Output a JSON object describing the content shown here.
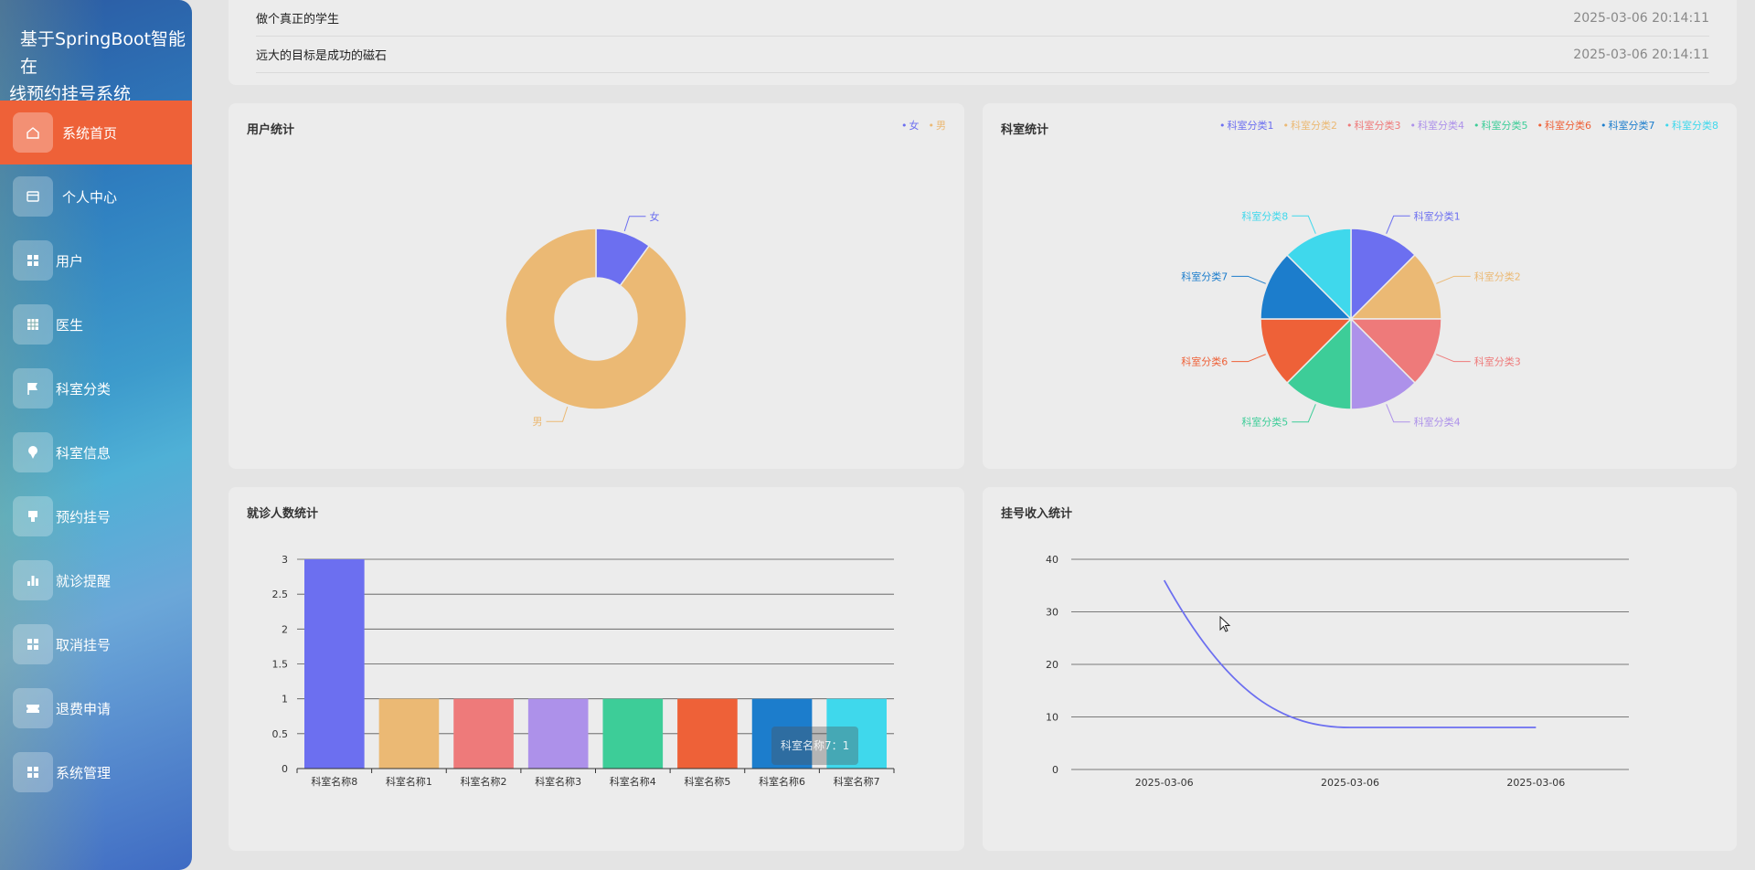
{
  "sidebar": {
    "brand_line1": "基于SpringBoot智能在",
    "brand_line2": "线预约挂号系统",
    "items": [
      {
        "label": "系统首页",
        "icon": "home-icon",
        "active": true
      },
      {
        "label": "个人中心",
        "icon": "card-icon",
        "active": false
      },
      {
        "label": "用户",
        "icon": "grid-icon",
        "active": false
      },
      {
        "label": "医生",
        "icon": "table-icon",
        "active": false
      },
      {
        "label": "科室分类",
        "icon": "flag-icon",
        "active": false
      },
      {
        "label": "科室信息",
        "icon": "pin-icon",
        "active": false
      },
      {
        "label": "预约挂号",
        "icon": "stamp-icon",
        "active": false
      },
      {
        "label": "就诊提醒",
        "icon": "bar-chart-icon",
        "active": false
      },
      {
        "label": "取消挂号",
        "icon": "grid-icon",
        "active": false
      },
      {
        "label": "退费申请",
        "icon": "ticket-icon",
        "active": false
      },
      {
        "label": "系统管理",
        "icon": "grid-icon",
        "active": false
      }
    ]
  },
  "news": [
    {
      "title": "做个真正的学生",
      "date": "2025-03-06 20:14:11"
    },
    {
      "title": "远大的目标是成功的磁石",
      "date": "2025-03-06 20:14:11"
    }
  ],
  "colors": {
    "c1": "#6c6ff0",
    "c2": "#ebb974",
    "c3": "#ee7a7a",
    "c4": "#ad91ea",
    "c5": "#3dcd98",
    "c6": "#ee6138",
    "c7": "#1c7dcc",
    "c8": "#3fd8ec",
    "active_menu": "#ee6138"
  },
  "tooltip": "科室名称7：1",
  "chart_data": [
    {
      "type": "pie",
      "title": "用户统计",
      "donut": true,
      "categories": [
        "女",
        "男"
      ],
      "values": [
        1,
        9
      ],
      "legend": "top-right"
    },
    {
      "type": "pie",
      "title": "科室统计",
      "categories": [
        "科室分类1",
        "科室分类2",
        "科室分类3",
        "科室分类4",
        "科室分类5",
        "科室分类6",
        "科室分类7",
        "科室分类8"
      ],
      "values": [
        1,
        1,
        1,
        1,
        1,
        1,
        1,
        1
      ],
      "legend": "top-right"
    },
    {
      "type": "bar",
      "title": "就诊人数统计",
      "categories": [
        "科室名称8",
        "科室名称1",
        "科室名称2",
        "科室名称3",
        "科室名称4",
        "科室名称5",
        "科室名称6",
        "科室名称7"
      ],
      "values": [
        3,
        1,
        1,
        1,
        1,
        1,
        1,
        1
      ],
      "ylim": [
        0,
        3
      ],
      "yticks": [
        "0",
        "0.5",
        "1",
        "1.5",
        "2",
        "2.5",
        "3"
      ],
      "grid": true
    },
    {
      "type": "line",
      "title": "挂号收入统计",
      "x": [
        "2025-03-06",
        "2025-03-06",
        "2025-03-06"
      ],
      "values": [
        36,
        8,
        8
      ],
      "ylim": [
        0,
        40
      ],
      "yticks": [
        "0",
        "10",
        "20",
        "30",
        "40"
      ],
      "smooth": true,
      "grid": true
    }
  ]
}
